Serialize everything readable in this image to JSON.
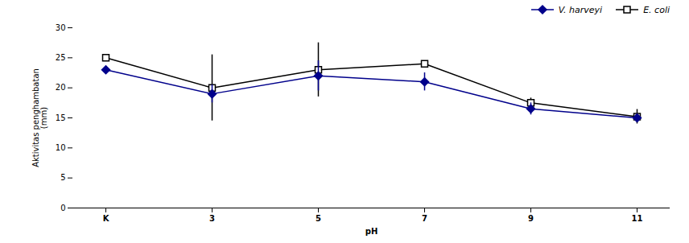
{
  "chart_data": {
    "type": "line",
    "xlabel": "pH",
    "ylabel": "Aktivitas penghambatan\n(mm)",
    "categories": [
      "K",
      "3",
      "5",
      "7",
      "9",
      "11"
    ],
    "series": [
      {
        "name": "V. harveyi",
        "color": "#00008B",
        "marker": "diamond",
        "line_style": "solid",
        "values": [
          23,
          19,
          22,
          21,
          16.5,
          15
        ],
        "yerr": [
          0.3,
          1.5,
          2.5,
          1.5,
          1.0,
          0.5
        ]
      },
      {
        "name": "E. coli",
        "color": "#000000",
        "marker": "open_square",
        "line_style": "solid",
        "values": [
          25,
          20,
          23,
          24,
          17.5,
          15.2
        ],
        "yerr": [
          0.3,
          5.5,
          4.5,
          0.5,
          0.8,
          1.2
        ]
      }
    ],
    "ylim": [
      0,
      30
    ],
    "yticks": [
      0,
      5,
      10,
      15,
      20,
      25,
      30
    ],
    "grid": false,
    "legend": "upper right"
  }
}
